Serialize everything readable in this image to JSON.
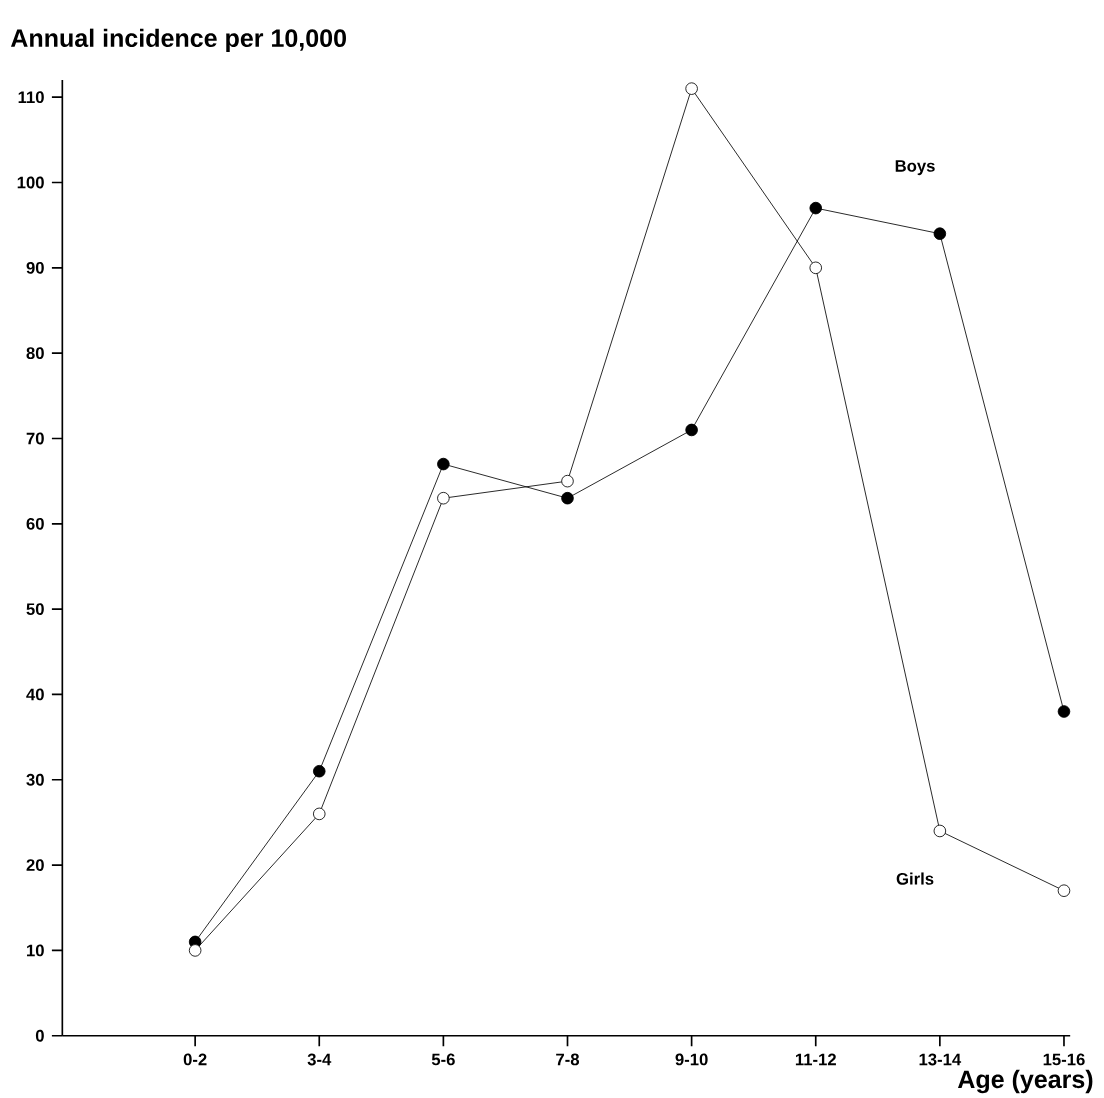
{
  "chart_data": {
    "type": "line",
    "ylabel": "Annual incidence per 10,000",
    "xlabel": "Age (years)",
    "categories": [
      "0-2",
      "3-4",
      "5-6",
      "7-8",
      "9-10",
      "11-12",
      "13-14",
      "15-16"
    ],
    "series": [
      {
        "name": "Boys",
        "color": "#000000",
        "values": [
          11,
          31,
          67,
          63,
          71,
          97,
          94,
          38
        ]
      },
      {
        "name": "Girls",
        "color": "#000000",
        "values": [
          10,
          26,
          63,
          65,
          111,
          90,
          24,
          17
        ]
      }
    ],
    "ylim": [
      0,
      112
    ],
    "yticks": [
      0,
      10,
      20,
      30,
      40,
      50,
      60,
      70,
      80,
      90,
      100,
      110
    ],
    "marker": "circle",
    "grid": false
  }
}
